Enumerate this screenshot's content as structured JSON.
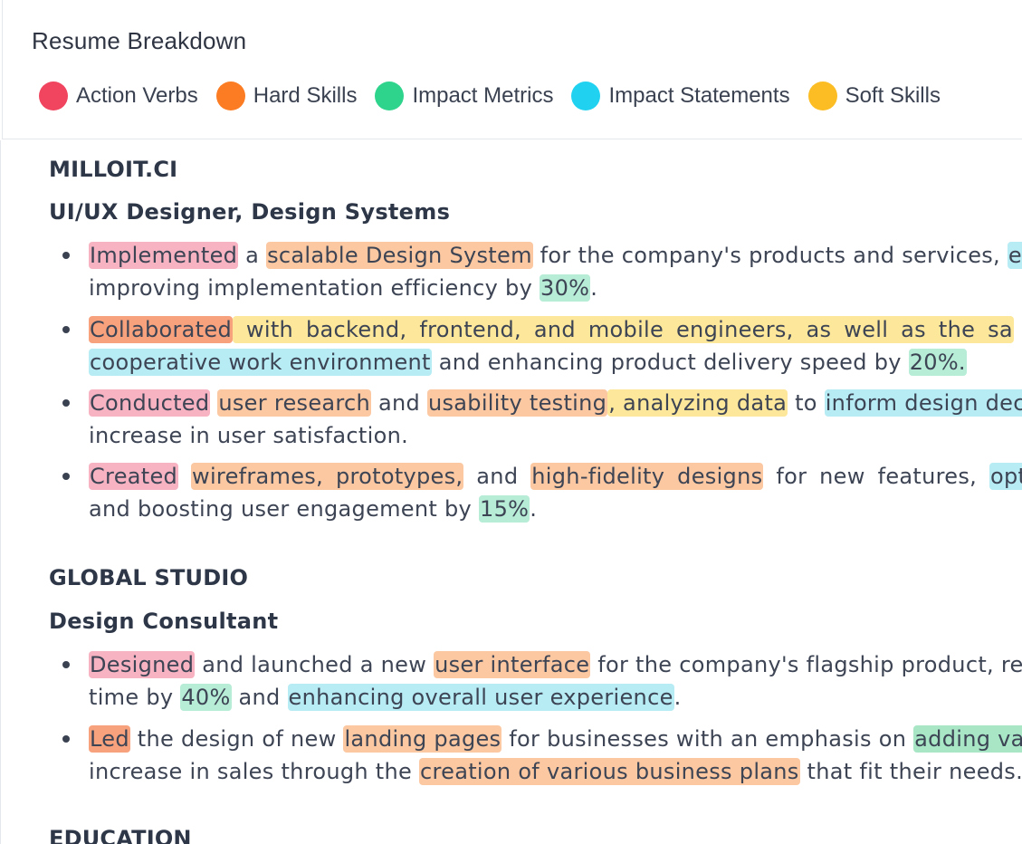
{
  "header": {
    "title": "Resume Breakdown",
    "legend": [
      {
        "label": "Action Verbs",
        "color": "#f0445f"
      },
      {
        "label": "Hard Skills",
        "color": "#fb7c22"
      },
      {
        "label": "Impact Metrics",
        "color": "#2ed38c"
      },
      {
        "label": "Impact Statements",
        "color": "#21d2f0"
      },
      {
        "label": "Soft Skills",
        "color": "#fbbd23"
      }
    ]
  },
  "jobs": [
    {
      "company": "MILLOIT.CI",
      "role": "UI/UX Designer, Design Systems",
      "bullets": [
        {
          "l1": [
            {
              "t": "Implemented",
              "c": "verb"
            },
            {
              "t": " a "
            },
            {
              "t": "scalable Design System",
              "c": "hard"
            },
            {
              "t": " for the company's products and services, "
            },
            {
              "t": "en",
              "c": "impact"
            }
          ],
          "l2": [
            {
              "t": "improving implementation efficiency by "
            },
            {
              "t": "30%",
              "c": "metric"
            },
            {
              "t": "."
            }
          ]
        },
        {
          "l1": [
            {
              "t": "Collaborated",
              "c": "led"
            },
            {
              "t": " with backend, frontend, and mobile engineers, as well as the sa",
              "c": "soft"
            }
          ],
          "l2": [
            {
              "t": "cooperative work environment",
              "c": "impact"
            },
            {
              "t": " and enhancing product delivery speed by "
            },
            {
              "t": "20%.",
              "c": "metric"
            }
          ]
        },
        {
          "l1": [
            {
              "t": "Conducted",
              "c": "verb"
            },
            {
              "t": " "
            },
            {
              "t": "user research",
              "c": "hard"
            },
            {
              "t": " and "
            },
            {
              "t": "usability testing",
              "c": "hard"
            },
            {
              "t": ", analyzing data",
              "c": "soft"
            },
            {
              "t": " to "
            },
            {
              "t": "inform design decisi",
              "c": "impact"
            }
          ],
          "l2": [
            {
              "t": "increase in user satisfaction."
            }
          ]
        },
        {
          "l1": [
            {
              "t": "Created",
              "c": "verb"
            },
            {
              "t": " "
            },
            {
              "t": "wireframes, prototypes,",
              "c": "hard"
            },
            {
              "t": " and "
            },
            {
              "t": "high-fidelity designs",
              "c": "hard"
            },
            {
              "t": " for new features, "
            },
            {
              "t": "optimiz",
              "c": "impact"
            }
          ],
          "l2": [
            {
              "t": "and boosting user engagement by "
            },
            {
              "t": "15%",
              "c": "metric"
            },
            {
              "t": "."
            }
          ]
        }
      ]
    },
    {
      "company": "GLOBAL STUDIO",
      "role": "Design Consultant",
      "bullets": [
        {
          "l1": [
            {
              "t": "Designed",
              "c": "verb"
            },
            {
              "t": " and launched a new "
            },
            {
              "t": "user interface",
              "c": "hard"
            },
            {
              "t": " for the company's flagship product, red"
            }
          ],
          "l2": [
            {
              "t": "time by "
            },
            {
              "t": "40%",
              "c": "metric"
            },
            {
              "t": " and "
            },
            {
              "t": "enhancing overall user experience",
              "c": "impact"
            },
            {
              "t": "."
            }
          ]
        },
        {
          "l1": [
            {
              "t": "Led",
              "c": "led"
            },
            {
              "t": " the design of new "
            },
            {
              "t": "landing pages",
              "c": "hard"
            },
            {
              "t": " for businesses with an emphasis on "
            },
            {
              "t": "adding valu",
              "c": "metric2"
            }
          ],
          "l2": [
            {
              "t": "increase in sales through the "
            },
            {
              "t": "creation of various business plans",
              "c": "hard"
            },
            {
              "t": " that fit their needs."
            }
          ]
        }
      ]
    }
  ],
  "next_section": "EDUCATION"
}
